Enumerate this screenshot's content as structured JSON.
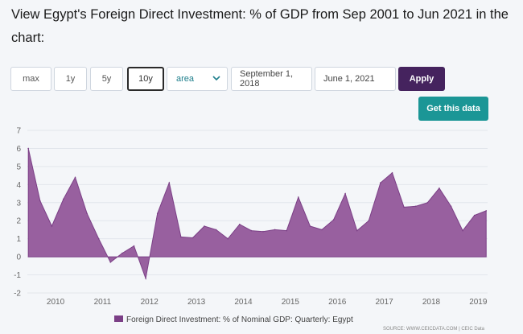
{
  "page": {
    "title": "View Egypt's Foreign Direct Investment: % of GDP from Sep 2001 to Jun 2021 in the chart:"
  },
  "controls": {
    "range_buttons": [
      "max",
      "1y",
      "5y",
      "10y"
    ],
    "active_range": "10y",
    "chart_type_select": "area",
    "start_date": "September 1, 2018",
    "end_date": "June 1, 2021",
    "apply_label": "Apply",
    "get_data_label": "Get this data"
  },
  "colors": {
    "area_fill": "#98609f",
    "area_stroke": "#7b3f86",
    "apply_bg": "#45235e",
    "get_data_bg": "#1b9696"
  },
  "chart_data": {
    "type": "area",
    "title": "",
    "xlabel": "",
    "ylabel": "",
    "x_tick_labels": [
      "2010",
      "2011",
      "2012",
      "2013",
      "2014",
      "2015",
      "2016",
      "2017",
      "2018",
      "2019"
    ],
    "y_tick_labels": [
      "7",
      "6",
      "5",
      "4",
      "3",
      "2",
      "1",
      "0",
      "-1",
      "-2"
    ],
    "ylim": [
      -2,
      7
    ],
    "xlim": [
      2009.4,
      2019.2
    ],
    "grid": true,
    "legend_position": "bottom",
    "series": [
      {
        "name": "Foreign Direct Investment: % of Nominal GDP: Quarterly: Egypt",
        "x": [
          2009.42,
          2009.67,
          2009.92,
          2010.17,
          2010.42,
          2010.67,
          2010.92,
          2011.17,
          2011.42,
          2011.67,
          2011.92,
          2012.17,
          2012.42,
          2012.67,
          2012.92,
          2013.17,
          2013.42,
          2013.67,
          2013.92,
          2014.17,
          2014.42,
          2014.67,
          2014.92,
          2015.17,
          2015.42,
          2015.67,
          2015.92,
          2016.17,
          2016.42,
          2016.67,
          2016.92,
          2017.17,
          2017.42,
          2017.67,
          2017.92,
          2018.17,
          2018.42,
          2018.67,
          2018.92,
          2019.17
        ],
        "values": [
          6.0,
          3.1,
          1.7,
          3.2,
          4.4,
          2.4,
          1.0,
          -0.3,
          0.2,
          0.6,
          -1.2,
          2.4,
          4.1,
          1.1,
          1.05,
          1.7,
          1.5,
          1.0,
          1.8,
          1.45,
          1.4,
          1.5,
          1.45,
          3.3,
          1.7,
          1.5,
          2.05,
          3.5,
          1.45,
          2.0,
          4.1,
          4.65,
          2.75,
          2.8,
          3.0,
          3.8,
          2.8,
          1.45,
          2.3,
          2.55
        ]
      }
    ],
    "source_note": "SOURCE: WWW.CEICDATA.COM | CEIC Data"
  }
}
